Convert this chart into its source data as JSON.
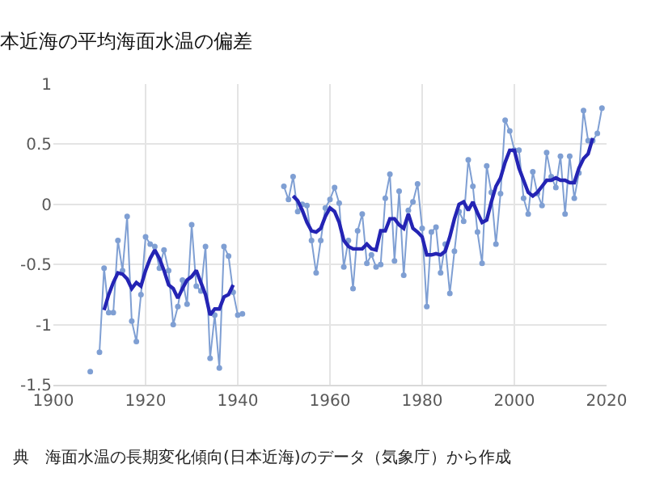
{
  "chart_data": {
    "type": "line",
    "title": "本近海の平均海面水温の偏差",
    "annotations": [
      "典　海面水温の長期変化傾向(日本近海)のデータ（気象庁）から作成"
    ],
    "series": [
      {
        "color": "#7f9fd3",
        "marker": "circle",
        "x": [
          1908,
          1909,
          1910,
          1911,
          1912,
          1913,
          1914,
          1915,
          1916,
          1917,
          1918,
          1919,
          1920,
          1921,
          1922,
          1923,
          1924,
          1925,
          1926,
          1927,
          1928,
          1929,
          1930,
          1931,
          1932,
          1933,
          1934,
          1935,
          1936,
          1937,
          1938,
          1939,
          1940,
          1941,
          1945,
          1950,
          1951,
          1952,
          1953,
          1954,
          1955,
          1956,
          1957,
          1958,
          1959,
          1960,
          1961,
          1962,
          1963,
          1964,
          1965,
          1966,
          1967,
          1968,
          1969,
          1970,
          1971,
          1972,
          1973,
          1974,
          1975,
          1976,
          1977,
          1978,
          1979,
          1980,
          1981,
          1982,
          1983,
          1984,
          1985,
          1986,
          1987,
          1988,
          1989,
          1990,
          1991,
          1992,
          1993,
          1994,
          1995,
          1996,
          1997,
          1998,
          1999,
          2000,
          2001,
          2002,
          2003,
          2004,
          2005,
          2006,
          2007,
          2008,
          2009,
          2010,
          2011,
          2012,
          2013,
          2014,
          2015,
          2016,
          2017,
          2018,
          2019
        ],
        "values": [
          -1.39,
          null,
          -1.23,
          -0.53,
          -0.9,
          -0.9,
          -0.3,
          -0.55,
          -0.1,
          -0.97,
          -1.14,
          -0.75,
          -0.27,
          -0.33,
          -0.35,
          -0.53,
          -0.38,
          -0.55,
          -1.0,
          -0.85,
          -0.63,
          -0.83,
          -0.17,
          -0.68,
          -0.72,
          -0.35,
          -1.28,
          -0.92,
          -1.36,
          -0.35,
          -0.43,
          -0.73,
          -0.92,
          -0.91,
          null,
          0.15,
          0.04,
          0.23,
          -0.06,
          0.0,
          -0.01,
          -0.3,
          -0.57,
          -0.3,
          -0.03,
          0.04,
          0.14,
          0.01,
          -0.52,
          -0.3,
          -0.7,
          -0.22,
          -0.08,
          -0.49,
          -0.42,
          -0.52,
          -0.5,
          0.05,
          0.25,
          -0.47,
          0.11,
          -0.59,
          -0.05,
          0.02,
          0.17,
          -0.2,
          -0.85,
          -0.23,
          -0.19,
          -0.57,
          -0.33,
          -0.74,
          -0.39,
          -0.06,
          -0.14,
          0.37,
          0.15,
          -0.23,
          -0.49,
          0.32,
          0.1,
          -0.33,
          0.09,
          0.7,
          0.61,
          0.45,
          0.45,
          0.05,
          -0.08,
          0.27,
          0.09,
          -0.01,
          0.43,
          0.23,
          0.14,
          0.4,
          -0.08,
          0.4,
          0.05,
          0.26,
          0.78,
          0.53,
          0.53,
          0.59,
          0.8
        ]
      },
      {
        "color": "#2424b4",
        "marker": "none",
        "x": [
          1911,
          1912,
          1913,
          1914,
          1915,
          1916,
          1917,
          1918,
          1919,
          1920,
          1921,
          1922,
          1923,
          1924,
          1925,
          1926,
          1927,
          1928,
          1929,
          1930,
          1931,
          1932,
          1933,
          1934,
          1935,
          1936,
          1937,
          1938,
          1939,
          1945,
          1952,
          1953,
          1954,
          1955,
          1956,
          1957,
          1958,
          1959,
          1960,
          1961,
          1962,
          1963,
          1964,
          1965,
          1966,
          1967,
          1968,
          1969,
          1970,
          1971,
          1972,
          1973,
          1974,
          1975,
          1976,
          1977,
          1978,
          1979,
          1980,
          1981,
          1982,
          1983,
          1984,
          1985,
          1986,
          1987,
          1988,
          1989,
          1990,
          1991,
          1992,
          1993,
          1994,
          1995,
          1996,
          1997,
          1998,
          1999,
          2000,
          2001,
          2002,
          2003,
          2004,
          2005,
          2006,
          2007,
          2008,
          2009,
          2010,
          2011,
          2012,
          2013,
          2014,
          2015,
          2016,
          2017
        ],
        "values": [
          -0.88,
          -0.75,
          -0.65,
          -0.57,
          -0.58,
          -0.62,
          -0.7,
          -0.65,
          -0.68,
          -0.55,
          -0.45,
          -0.38,
          -0.45,
          -0.55,
          -0.67,
          -0.7,
          -0.78,
          -0.7,
          -0.63,
          -0.6,
          -0.55,
          -0.65,
          -0.75,
          -0.92,
          -0.87,
          -0.87,
          -0.77,
          -0.75,
          -0.67,
          null,
          0.07,
          0.03,
          -0.05,
          -0.15,
          -0.22,
          -0.23,
          -0.2,
          -0.1,
          -0.03,
          -0.06,
          -0.15,
          -0.3,
          -0.35,
          -0.37,
          -0.37,
          -0.37,
          -0.33,
          -0.37,
          -0.38,
          -0.22,
          -0.22,
          -0.12,
          -0.12,
          -0.17,
          -0.2,
          -0.08,
          -0.2,
          -0.23,
          -0.27,
          -0.42,
          -0.42,
          -0.41,
          -0.42,
          -0.39,
          -0.27,
          -0.12,
          0.0,
          0.02,
          -0.05,
          0.02,
          -0.07,
          -0.15,
          -0.13,
          0.02,
          0.15,
          0.22,
          0.35,
          0.45,
          0.45,
          0.3,
          0.2,
          0.1,
          0.07,
          0.1,
          0.15,
          0.2,
          0.2,
          0.22,
          0.2,
          0.2,
          0.18,
          0.18,
          0.3,
          0.38,
          0.42,
          0.55
        ]
      }
    ],
    "xlim": [
      1900,
      2020
    ],
    "xticks": [
      1900,
      1920,
      1940,
      1960,
      1980,
      2000,
      2020
    ],
    "ylim": [
      -1.5,
      1
    ],
    "yticks": [
      -1.5,
      -1,
      -0.5,
      0,
      0.5,
      1
    ],
    "grid": true
  }
}
